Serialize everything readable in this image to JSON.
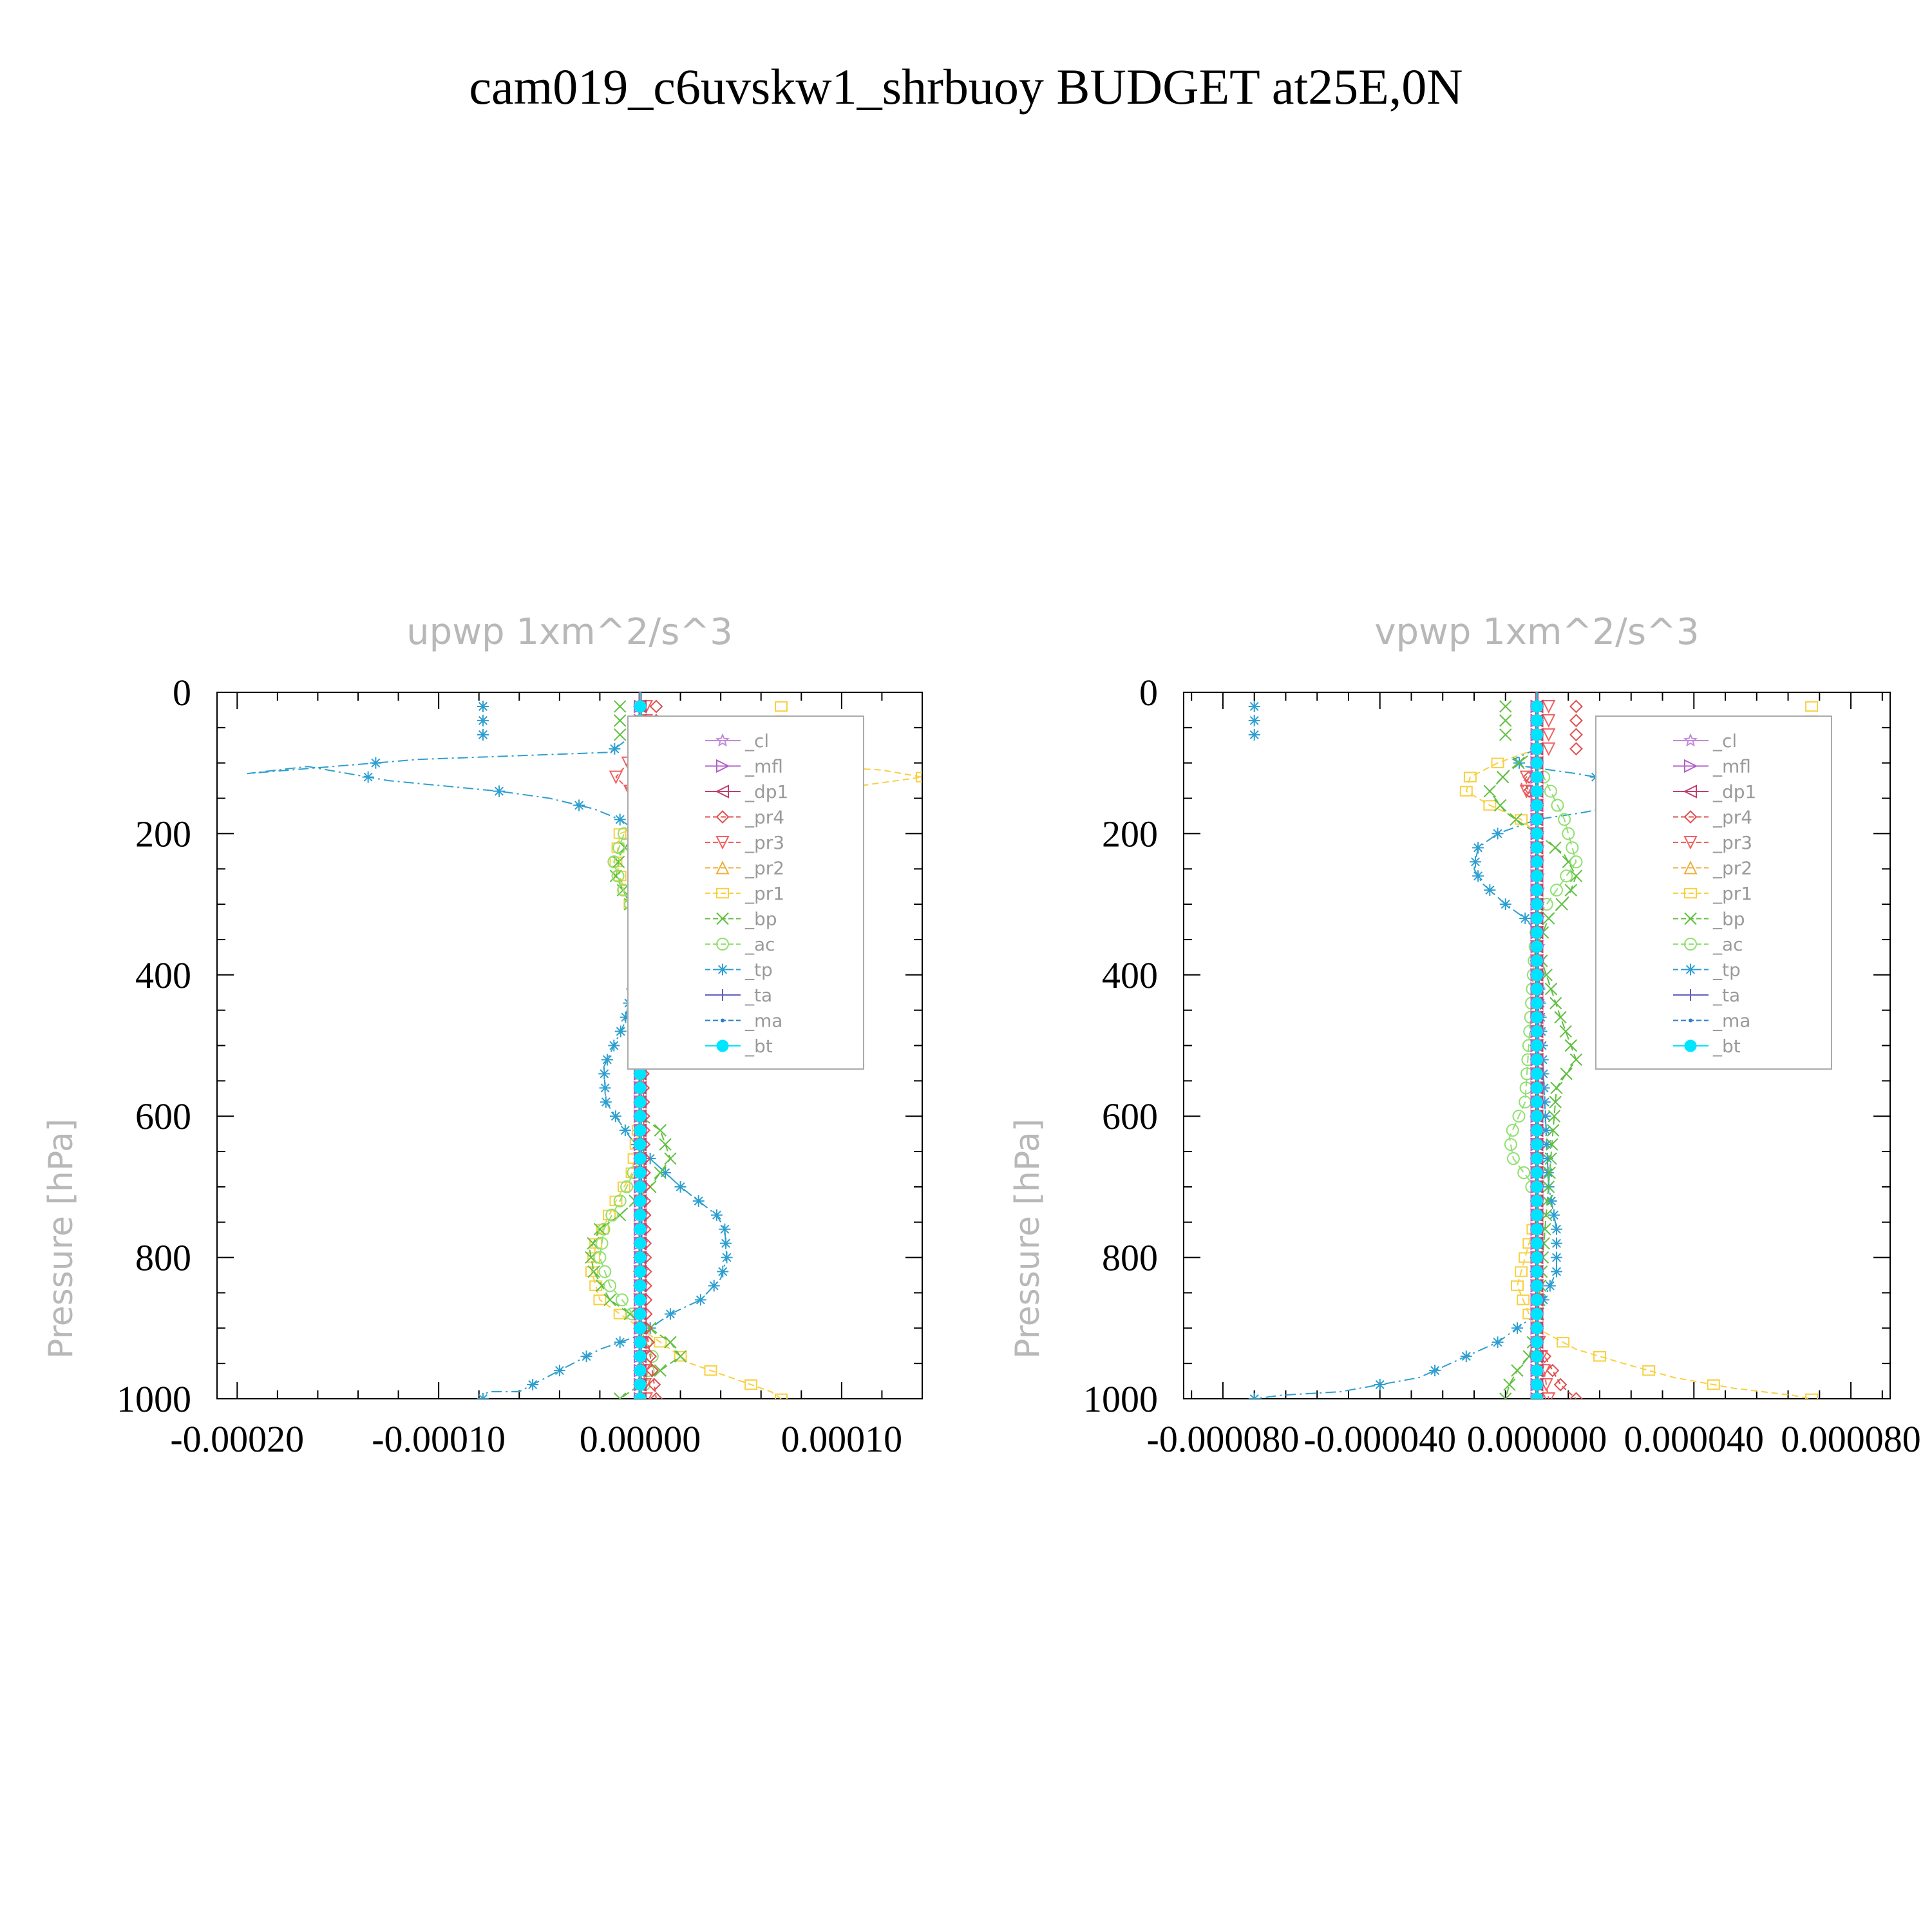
{
  "title": "cam019_c6uvskw1_shrbuoy  BUDGET at25E,0N",
  "colors": {
    "cl": "#c08ad8",
    "mfl": "#b060c8",
    "dp1": "#c04070",
    "pr4": "#e05050",
    "pr3": "#f06060",
    "pr2": "#f0b040",
    "pr1": "#f8d040",
    "bp": "#60c040",
    "ac": "#90e070",
    "tp": "#2d9fd0",
    "ta": "#6060c0",
    "ma": "#2d7fd0",
    "bt": "#00e5ff"
  },
  "legend_series": [
    {
      "key": "cl",
      "label": "_cl",
      "marker": "star"
    },
    {
      "key": "mfl",
      "label": "_mfl",
      "marker": "tri-right"
    },
    {
      "key": "dp1",
      "label": "_dp1",
      "marker": "tri-left"
    },
    {
      "key": "pr4",
      "label": "_pr4",
      "marker": "diamond"
    },
    {
      "key": "pr3",
      "label": "_pr3",
      "marker": "tri-down"
    },
    {
      "key": "pr2",
      "label": "_pr2",
      "marker": "tri-up"
    },
    {
      "key": "pr1",
      "label": "_pr1",
      "marker": "square"
    },
    {
      "key": "bp",
      "label": "_bp",
      "marker": "x"
    },
    {
      "key": "ac",
      "label": "_ac",
      "marker": "circle"
    },
    {
      "key": "tp",
      "label": "_tp",
      "marker": "asterisk"
    },
    {
      "key": "ta",
      "label": "_ta",
      "marker": "plus"
    },
    {
      "key": "ma",
      "label": "_ma",
      "marker": "dot"
    },
    {
      "key": "bt",
      "label": "_bt",
      "marker": "filled-circle"
    }
  ],
  "chart_data": [
    {
      "type": "line",
      "title": "upwp   1xm^2/s^3",
      "ylabel": "Pressure [hPa]",
      "xlabel": "",
      "xlim": [
        -0.00021,
        0.00014
      ],
      "ylim": [
        1000,
        0
      ],
      "xticks": [
        -0.0002,
        -0.0001,
        0.0,
        0.0001
      ],
      "xtick_labels": [
        "-0.00020",
        "-0.00010",
        "0.00000",
        "0.00010"
      ],
      "yticks": [
        0,
        200,
        400,
        600,
        800,
        1000
      ],
      "ytick_labels": [
        "0",
        "200",
        "400",
        "600",
        "800",
        "1000"
      ],
      "legend": "upper-right",
      "series": [
        {
          "key": "tp",
          "x": [
            -8e-06,
            -1.5e-05,
            -0.00011,
            -0.000195,
            -0.000165,
            -0.000125,
            -7e-05,
            -4.5e-05,
            -2.3e-05,
            -1e-05,
            0.0,
            1e-05,
            2.2e-05,
            2.5e-05,
            2e-05,
            8e-06,
            0.0,
            -8e-06,
            -1.8e-05,
            -1.7e-05,
            -5e-06,
            5e-06,
            2e-05,
            3.8e-05,
            4.2e-05,
            4.3e-05,
            4e-05,
            3e-05,
            1.5e-05,
            0.0,
            -2e-05,
            -4e-05,
            -6e-05,
            -7.5e-05,
            -7.8e-05
          ],
          "y": [
            70,
            85,
            95,
            115,
            105,
            125,
            140,
            150,
            165,
            180,
            200,
            215,
            240,
            260,
            290,
            330,
            370,
            470,
            530,
            580,
            630,
            660,
            700,
            740,
            760,
            800,
            830,
            860,
            880,
            910,
            930,
            960,
            990,
            990,
            995
          ]
        },
        {
          "key": "pr1",
          "x": [
            0.0,
            2e-05,
            6e-05,
            0.00012,
            0.00014,
            9e-05,
            4e-05,
            1e-05,
            -1e-05,
            -1.2e-05,
            -8e-06,
            -2e-06,
            0.0,
            0.0,
            -4e-06,
            -1.2e-05,
            -2.2e-05,
            -2.4e-05,
            -2e-05,
            -1e-05,
            0.0,
            1e-05,
            2.5e-05,
            4.5e-05,
            6.5e-05,
            7e-05
          ],
          "y": [
            70,
            90,
            100,
            110,
            120,
            140,
            160,
            180,
            200,
            240,
            280,
            320,
            360,
            600,
            680,
            720,
            780,
            820,
            860,
            880,
            900,
            920,
            950,
            970,
            990,
            1000
          ]
        },
        {
          "key": "bp",
          "x": [
            0.0,
            1e-05,
            3e-05,
            2.5e-05,
            1e-05,
            0.0,
            -1e-05,
            -1.2e-05,
            -5e-06,
            0.0,
            0.0,
            1e-05,
            1.5e-05,
            5e-06,
            -1e-05,
            -2e-05,
            -2.5e-05,
            -2.3e-05,
            -1.5e-05,
            -5e-06,
            5e-06,
            1.5e-05,
            2e-05,
            1e-05,
            0.0,
            -1e-05
          ],
          "y": [
            80,
            95,
            115,
            130,
            160,
            190,
            230,
            260,
            300,
            340,
            600,
            620,
            660,
            700,
            740,
            760,
            790,
            820,
            860,
            880,
            900,
            920,
            940,
            960,
            980,
            1000
          ]
        },
        {
          "key": "ac",
          "x": [
            0.0,
            1e-05,
            1.5e-05,
            5e-06,
            -8e-06,
            -1.3e-05,
            -1e-05,
            -3e-06,
            0.0,
            0.0,
            -1e-05,
            -1.8e-05,
            -2e-05,
            -1.5e-05,
            -6e-06,
            0.0,
            6e-06,
            0.0
          ],
          "y": [
            80,
            100,
            120,
            160,
            200,
            240,
            270,
            310,
            350,
            660,
            720,
            760,
            800,
            840,
            870,
            900,
            940,
            1000
          ]
        },
        {
          "key": "pr4",
          "x": [
            0.0,
            1e-05,
            1.8e-05,
            1e-05,
            2e-06,
            0.0,
            3e-06,
            6e-06,
            8e-06
          ],
          "y": [
            80,
            100,
            115,
            140,
            170,
            200,
            900,
            960,
            1000
          ]
        },
        {
          "key": "pr3",
          "x": [
            0.0,
            -6e-06,
            -1.2e-05,
            -5e-06,
            0.0,
            0.0,
            3e-06
          ],
          "y": [
            80,
            100,
            120,
            140,
            170,
            900,
            1000
          ]
        },
        {
          "key": "cl",
          "x": [
            0.0,
            1e-06,
            0.0,
            1e-06,
            0.0
          ],
          "y": [
            0,
            250,
            500,
            750,
            1000
          ]
        },
        {
          "key": "mfl",
          "x": [
            0.0,
            0.0
          ],
          "y": [
            0,
            1000
          ]
        },
        {
          "key": "dp1",
          "x": [
            0.0,
            0.0
          ],
          "y": [
            0,
            1000
          ]
        },
        {
          "key": "ma",
          "x": [
            0.0,
            0.0
          ],
          "y": [
            0,
            1000
          ]
        },
        {
          "key": "ta",
          "x": [
            0.0,
            0.0
          ],
          "y": [
            0,
            1000
          ]
        },
        {
          "key": "bt",
          "x": [
            0.0,
            0.0
          ],
          "y": [
            0,
            1000
          ]
        }
      ]
    },
    {
      "type": "line",
      "title": "vpwp   1xm^2/s^3",
      "ylabel": "Pressure [hPa]",
      "xlabel": "",
      "xlim": [
        -9e-05,
        9e-05
      ],
      "ylim": [
        1000,
        0
      ],
      "xticks": [
        -8e-05,
        -4e-05,
        0.0,
        4e-05,
        8e-05
      ],
      "xtick_labels": [
        "-0.000080",
        "-0.000040",
        "0.000000",
        "0.000040",
        "0.000080"
      ],
      "yticks": [
        0,
        200,
        400,
        600,
        800,
        1000
      ],
      "ytick_labels": [
        "0",
        "200",
        "400",
        "600",
        "800",
        "1000"
      ],
      "legend": "upper-right",
      "series": [
        {
          "key": "tp",
          "x": [
            0.0,
            -6e-06,
            -3e-06,
            1e-05,
            2e-05,
            2.8e-05,
            3e-05,
            2.5e-05,
            1.2e-05,
            0.0,
            -1e-05,
            -1.5e-05,
            -1.6e-05,
            -1.4e-05,
            -8e-06,
            -3e-06,
            0.0,
            3e-06,
            5e-06,
            5e-06,
            0.0,
            -1e-05,
            -2.2e-05,
            -3e-05,
            -4e-05,
            -5e-05,
            -6.5e-05,
            -7.2e-05
          ],
          "y": [
            80,
            95,
            105,
            115,
            125,
            135,
            145,
            155,
            170,
            180,
            200,
            220,
            250,
            270,
            300,
            320,
            340,
            700,
            760,
            820,
            880,
            920,
            950,
            970,
            980,
            990,
            995,
            1000
          ]
        },
        {
          "key": "pr1",
          "x": [
            0.0,
            -1e-05,
            -1.7e-05,
            -1.8e-05,
            -1.2e-05,
            -4e-06,
            0.0,
            0.0,
            -3e-06,
            -5e-06,
            -2e-06,
            0.0,
            1e-05,
            2.2e-05,
            3.5e-05,
            5e-05,
            6.5e-05,
            7e-05
          ],
          "y": [
            80,
            100,
            120,
            140,
            160,
            180,
            200,
            740,
            800,
            840,
            880,
            900,
            930,
            950,
            970,
            985,
            995,
            1000
          ]
        },
        {
          "key": "bp",
          "x": [
            0.0,
            -7e-06,
            -1.2e-05,
            -8e-06,
            0.0,
            7e-06,
            1e-05,
            8e-06,
            3e-06,
            0.0,
            6e-06,
            1e-05,
            5e-06,
            0.0,
            -2e-06,
            -5e-06,
            -7e-06,
            -8e-06
          ],
          "y": [
            80,
            110,
            140,
            170,
            200,
            230,
            260,
            290,
            320,
            360,
            460,
            520,
            560,
            900,
            940,
            960,
            980,
            1000
          ]
        },
        {
          "key": "ac",
          "x": [
            0.0,
            7e-06,
            1e-05,
            5e-06,
            0.0,
            -3e-06,
            -7e-06,
            -6e-06,
            -2e-06,
            0.0
          ],
          "y": [
            100,
            180,
            240,
            280,
            320,
            580,
            630,
            660,
            690,
            720
          ]
        },
        {
          "key": "pr4",
          "x": [
            0.0,
            -3e-06,
            0.0,
            0.0,
            6e-06,
            1e-05
          ],
          "y": [
            100,
            130,
            160,
            920,
            980,
            1000
          ]
        },
        {
          "key": "pr3",
          "x": [
            0.0,
            -4e-06,
            0.0,
            0.0,
            3e-06
          ],
          "y": [
            100,
            130,
            160,
            900,
            1000
          ]
        },
        {
          "key": "cl",
          "x": [
            0.0,
            5e-07,
            0.0
          ],
          "y": [
            0,
            500,
            1000
          ]
        },
        {
          "key": "mfl",
          "x": [
            0.0,
            0.0
          ],
          "y": [
            0,
            1000
          ]
        },
        {
          "key": "dp1",
          "x": [
            0.0,
            0.0
          ],
          "y": [
            0,
            1000
          ]
        },
        {
          "key": "ma",
          "x": [
            0.0,
            0.0
          ],
          "y": [
            0,
            1000
          ]
        },
        {
          "key": "ta",
          "x": [
            0.0,
            0.0
          ],
          "y": [
            0,
            1000
          ]
        },
        {
          "key": "bt",
          "x": [
            0.0,
            0.0
          ],
          "y": [
            0,
            1000
          ]
        }
      ]
    }
  ]
}
